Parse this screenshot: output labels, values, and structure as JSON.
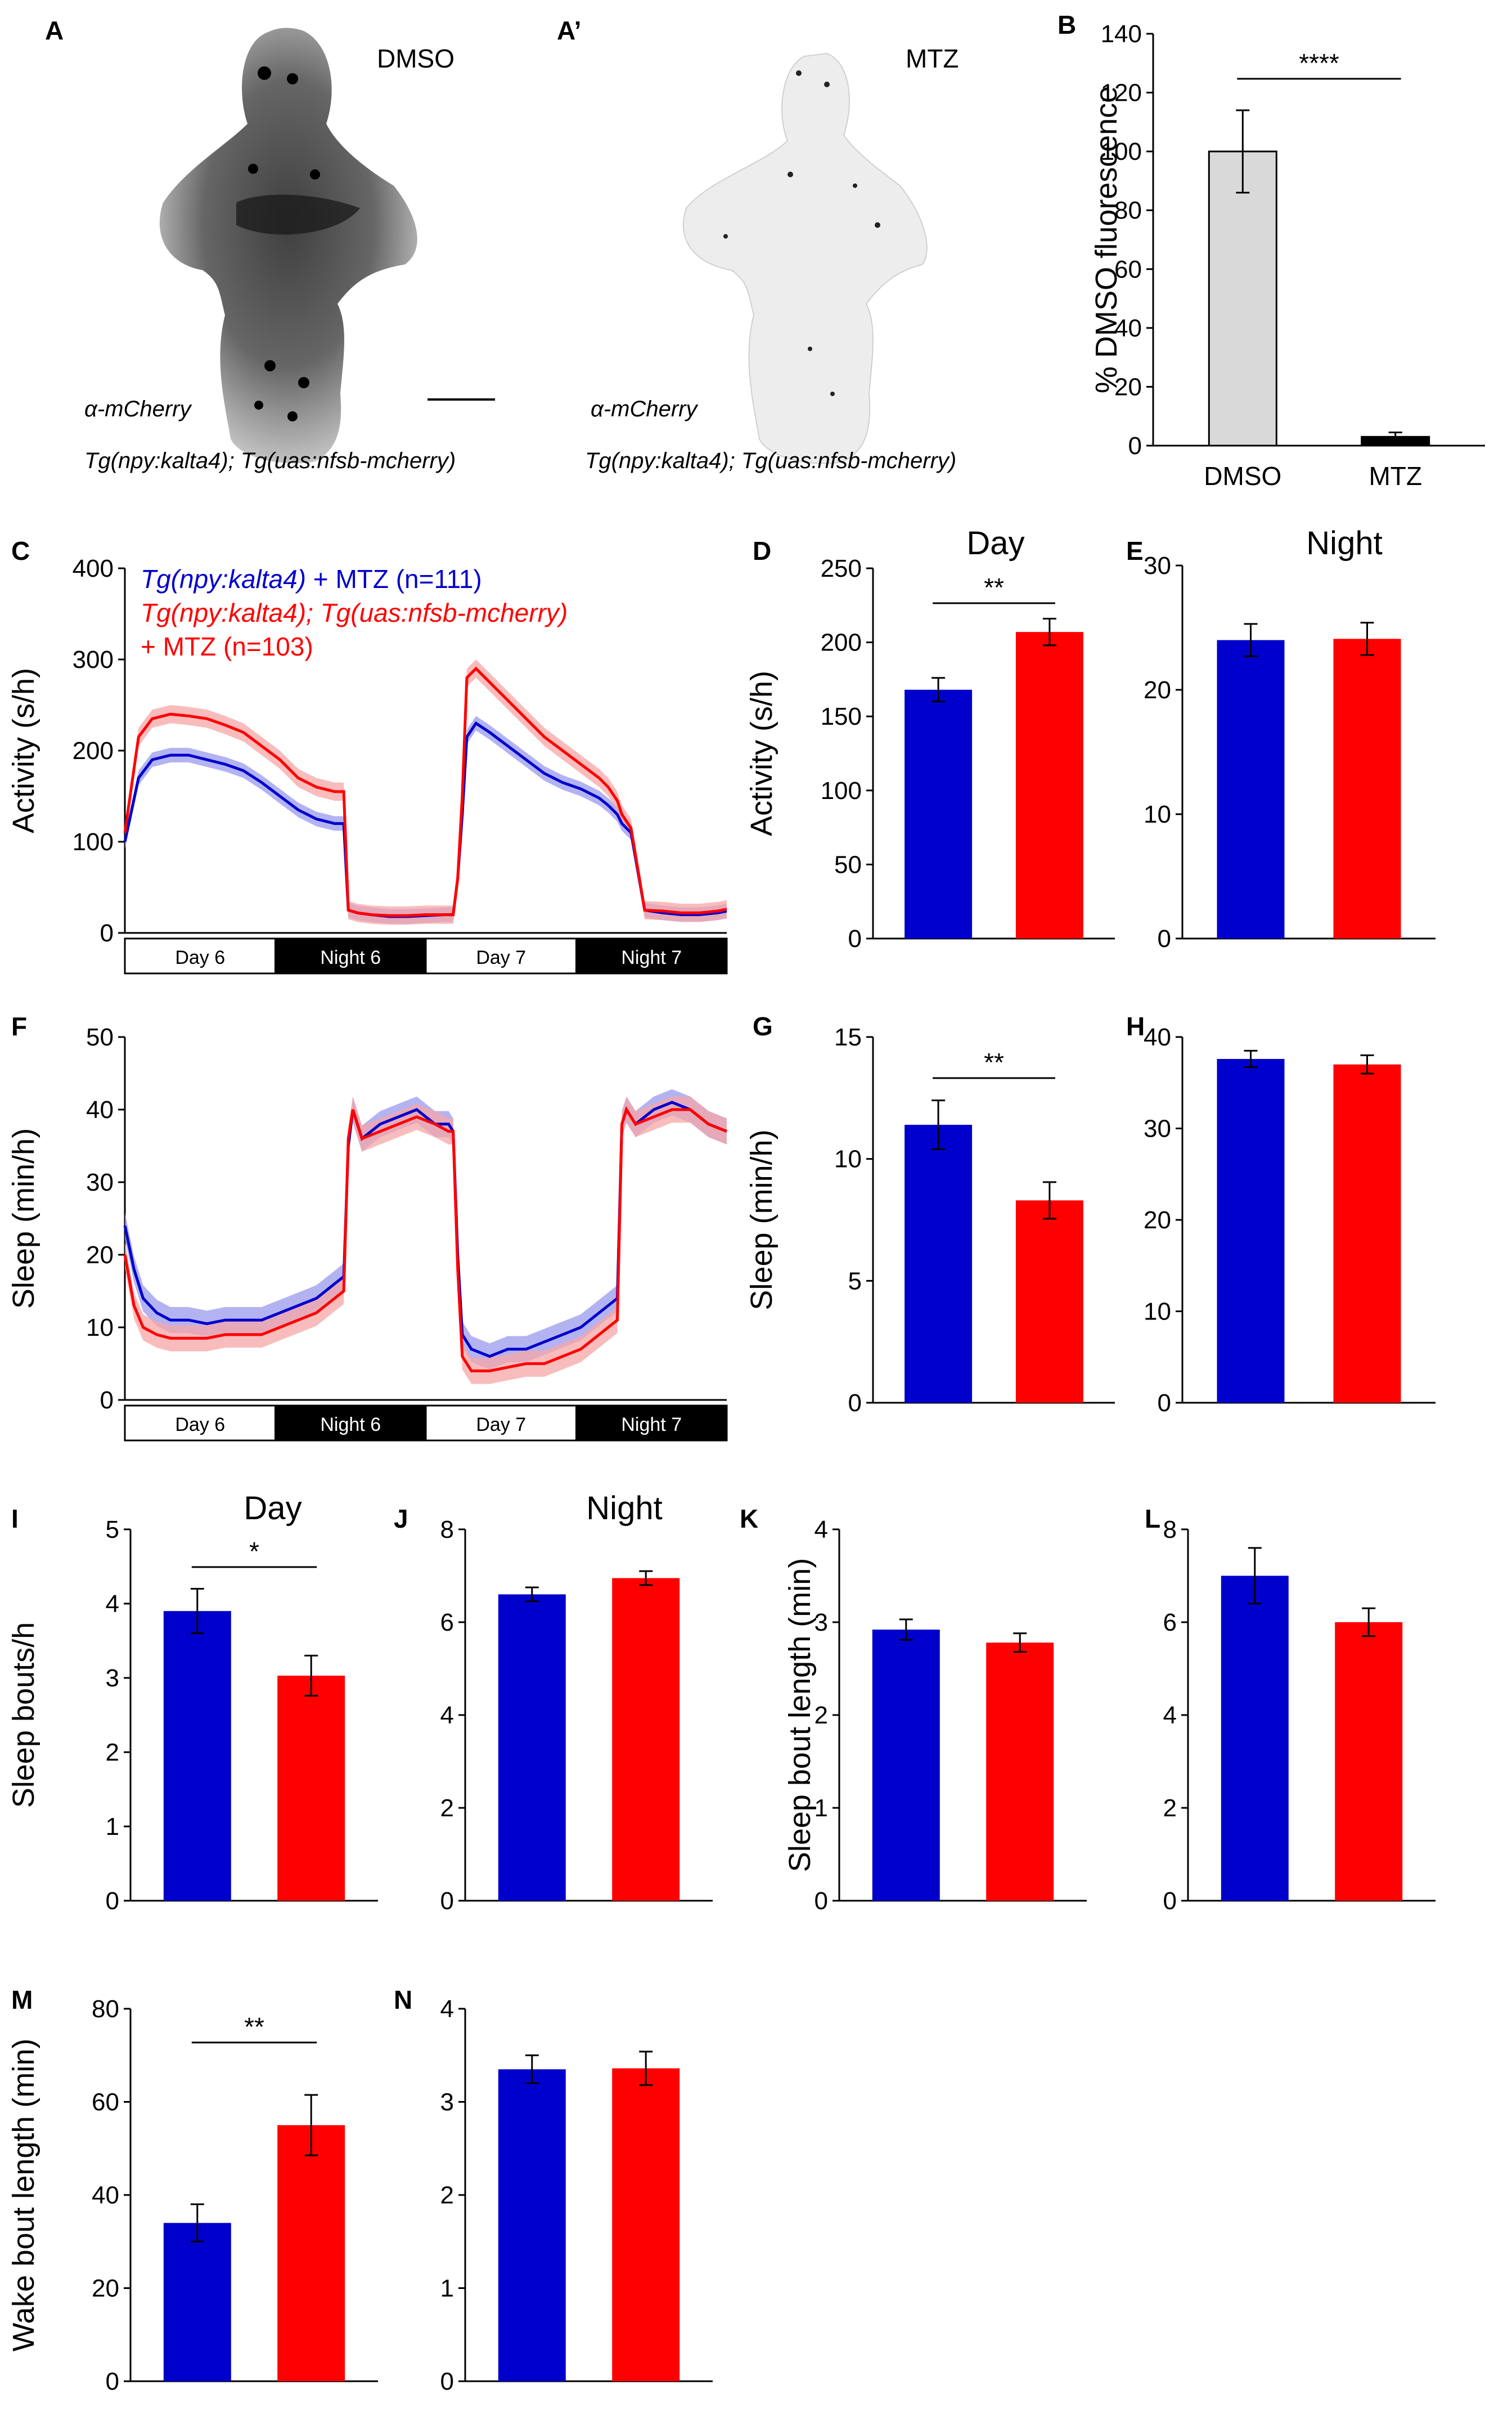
{
  "colors": {
    "blue": "#0000cc",
    "red": "#ff0000",
    "blue_band": "#9a9aee",
    "red_band": "#f7a6a6",
    "dmso_bar": "#d9d9d9",
    "mtz_bar": "#000000"
  },
  "panel_images": {
    "A": {
      "label": "A",
      "title": "DMSO",
      "antibody": "α-mCherry",
      "genotype": "Tg(npy:kalta4); Tg(uas:nfsb-mcherry)"
    },
    "A2": {
      "label": "A’",
      "title": "MTZ",
      "antibody": "α-mCherry",
      "genotype": "Tg(npy:kalta4); Tg(uas:nfsb-mcherry)"
    }
  },
  "legend": {
    "blue_text": "Tg(npy:kalta4)",
    "blue_rest": " + MTZ (n=111)",
    "red_line1": "Tg(npy:kalta4); Tg(uas:nfsb-mcherry)",
    "red_line2": "+ MTZ (n=103)"
  },
  "time_bands": [
    "Day 6",
    "Night 6",
    "Day 7",
    "Night 7"
  ],
  "chart_data": [
    {
      "id": "B",
      "label": "B",
      "type": "bar",
      "categories": [
        "DMSO",
        "MTZ"
      ],
      "values": [
        100,
        3
      ],
      "errors": [
        14,
        1.5
      ],
      "ylim": [
        0,
        140
      ],
      "yticks": [
        0,
        20,
        40,
        60,
        80,
        100,
        120,
        140
      ],
      "ylabel": "% DMSO fluorescence",
      "significance": "****",
      "title": ""
    },
    {
      "id": "C",
      "label": "C",
      "type": "line",
      "ylabel": "Activity (s/h)",
      "ylim": [
        0,
        400
      ],
      "yticks": [
        0,
        100,
        200,
        300,
        400
      ],
      "series": [
        {
          "name": "Tg(npy:kalta4) + MTZ (n=111)",
          "color": "#0000cc",
          "x": [
            0,
            3,
            6,
            10,
            14,
            18,
            22,
            26,
            30,
            34,
            38,
            42,
            46,
            48,
            49,
            51,
            54,
            58,
            62,
            66,
            70,
            72,
            73,
            74,
            75,
            77,
            80,
            84,
            88,
            92,
            96,
            100,
            104,
            106,
            108,
            109,
            111,
            114,
            118,
            122,
            126,
            130,
            132
          ],
          "y": [
            100,
            170,
            190,
            195,
            195,
            190,
            185,
            178,
            165,
            150,
            135,
            125,
            120,
            120,
            25,
            22,
            20,
            18,
            18,
            19,
            20,
            20,
            60,
            130,
            215,
            230,
            220,
            205,
            190,
            175,
            165,
            158,
            148,
            140,
            130,
            120,
            110,
            25,
            22,
            20,
            20,
            22,
            24
          ],
          "band": 8
        },
        {
          "name": "Tg(npy:kalta4); Tg(uas:nfsb-mcherry) + MTZ (n=103)",
          "color": "#ff0000",
          "x": [
            0,
            3,
            6,
            10,
            14,
            18,
            22,
            26,
            30,
            34,
            38,
            42,
            46,
            48,
            49,
            51,
            54,
            58,
            62,
            66,
            70,
            72,
            73,
            74,
            75,
            77,
            80,
            84,
            88,
            92,
            96,
            100,
            104,
            106,
            108,
            109,
            111,
            114,
            118,
            122,
            126,
            130,
            132
          ],
          "y": [
            110,
            215,
            235,
            240,
            238,
            235,
            228,
            220,
            205,
            190,
            170,
            160,
            155,
            155,
            25,
            22,
            20,
            19,
            19,
            20,
            20,
            20,
            60,
            150,
            280,
            290,
            275,
            255,
            235,
            215,
            200,
            185,
            170,
            160,
            145,
            130,
            115,
            25,
            24,
            22,
            22,
            24,
            26
          ],
          "band": 10
        }
      ]
    },
    {
      "id": "D",
      "label": "D",
      "type": "bar",
      "title": "Day",
      "categories": [
        "Tg(npy:kalta4) + MTZ",
        "Tg(npy:kalta4); Tg(uas:nfsb-mcherry) + MTZ"
      ],
      "values": [
        168,
        207
      ],
      "errors": [
        8,
        9
      ],
      "ylim": [
        0,
        250
      ],
      "yticks": [
        0,
        50,
        100,
        150,
        200,
        250
      ],
      "ylabel": "Activity (s/h)",
      "significance": "**"
    },
    {
      "id": "E",
      "label": "E",
      "type": "bar",
      "title": "Night",
      "categories": [
        "Tg(npy:kalta4) + MTZ",
        "Tg(npy:kalta4); Tg(uas:nfsb-mcherry) + MTZ"
      ],
      "values": [
        24,
        24.1
      ],
      "errors": [
        1.3,
        1.3
      ],
      "ylim": [
        0,
        30
      ],
      "yticks": [
        0,
        10,
        20,
        30
      ],
      "ylabel": ""
    },
    {
      "id": "F",
      "label": "F",
      "type": "line",
      "ylabel": "Sleep (min/h)",
      "ylim": [
        0,
        50
      ],
      "yticks": [
        0,
        10,
        20,
        30,
        40,
        50
      ],
      "series": [
        {
          "name": "Tg(npy:kalta4) + MTZ (n=111)",
          "color": "#0000cc",
          "x": [
            0,
            2,
            4,
            7,
            10,
            14,
            18,
            22,
            26,
            30,
            34,
            38,
            42,
            46,
            48,
            49,
            50,
            52,
            56,
            60,
            64,
            68,
            71,
            72,
            73,
            74,
            76,
            80,
            84,
            88,
            92,
            96,
            100,
            104,
            108,
            109,
            110,
            112,
            116,
            120,
            124,
            128,
            132
          ],
          "y": [
            24,
            18,
            14,
            12,
            11,
            11,
            10.5,
            11,
            11,
            11,
            12,
            13,
            14,
            16,
            17,
            35,
            40,
            36,
            38,
            39,
            40,
            38,
            38,
            37,
            20,
            9,
            7,
            6,
            7,
            7,
            8,
            9,
            10,
            12,
            14,
            38,
            40,
            38,
            40,
            41,
            40,
            38,
            37
          ],
          "band": 1.8
        },
        {
          "name": "Tg(npy:kalta4); Tg(uas:nfsb-mcherry) + MTZ (n=103)",
          "color": "#ff0000",
          "x": [
            0,
            2,
            4,
            7,
            10,
            14,
            18,
            22,
            26,
            30,
            34,
            38,
            42,
            46,
            48,
            49,
            50,
            52,
            56,
            60,
            64,
            68,
            71,
            72,
            73,
            74,
            76,
            80,
            84,
            88,
            92,
            96,
            100,
            104,
            108,
            109,
            110,
            112,
            116,
            120,
            124,
            128,
            132
          ],
          "y": [
            20,
            13,
            10,
            9,
            8.5,
            8.5,
            8.5,
            9,
            9,
            9,
            10,
            11,
            12,
            14,
            15,
            36,
            40,
            36,
            37,
            38,
            39,
            38,
            37,
            37,
            18,
            6,
            4,
            4,
            4.5,
            5,
            5,
            6,
            7,
            9,
            11,
            38,
            40,
            38,
            39,
            40,
            40,
            38,
            37
          ],
          "band": 1.8
        }
      ]
    },
    {
      "id": "G",
      "label": "G",
      "type": "bar",
      "categories": [
        "Tg(npy:kalta4) + MTZ",
        "Tg(npy:kalta4); Tg(uas:nfsb-mcherry) + MTZ"
      ],
      "values": [
        11.4,
        8.3
      ],
      "errors": [
        1,
        0.75
      ],
      "ylim": [
        0,
        15
      ],
      "yticks": [
        0,
        5,
        10,
        15
      ],
      "ylabel": "Sleep (min/h)",
      "significance": "**"
    },
    {
      "id": "H",
      "label": "H",
      "type": "bar",
      "categories": [
        "Tg(npy:kalta4) + MTZ",
        "Tg(npy:kalta4); Tg(uas:nfsb-mcherry) + MTZ"
      ],
      "values": [
        37.6,
        37
      ],
      "errors": [
        0.9,
        1
      ],
      "ylim": [
        0,
        40
      ],
      "yticks": [
        0,
        10,
        20,
        30,
        40
      ],
      "ylabel": ""
    },
    {
      "id": "I",
      "label": "I",
      "type": "bar",
      "title": "Day",
      "categories": [
        "Tg(npy:kalta4) + MTZ",
        "Tg(npy:kalta4); Tg(uas:nfsb-mcherry) + MTZ"
      ],
      "values": [
        3.9,
        3.03
      ],
      "errors": [
        0.3,
        0.27
      ],
      "ylim": [
        0,
        5
      ],
      "yticks": [
        0,
        1,
        2,
        3,
        4,
        5
      ],
      "ylabel": "Sleep bouts/h",
      "significance": "*"
    },
    {
      "id": "J",
      "label": "J",
      "type": "bar",
      "title": "Night",
      "categories": [
        "Tg(npy:kalta4) + MTZ",
        "Tg(npy:kalta4); Tg(uas:nfsb-mcherry) + MTZ"
      ],
      "values": [
        6.6,
        6.95
      ],
      "errors": [
        0.15,
        0.15
      ],
      "ylim": [
        0,
        8
      ],
      "yticks": [
        0,
        2,
        4,
        6,
        8
      ],
      "ylabel": ""
    },
    {
      "id": "K",
      "label": "K",
      "type": "bar",
      "categories": [
        "Tg(npy:kalta4) + MTZ",
        "Tg(npy:kalta4); Tg(uas:nfsb-mcherry) + MTZ"
      ],
      "values": [
        2.92,
        2.78
      ],
      "errors": [
        0.11,
        0.1
      ],
      "ylim": [
        0,
        4
      ],
      "yticks": [
        0,
        1,
        2,
        3,
        4
      ],
      "ylabel": "Sleep bout length (min)"
    },
    {
      "id": "L",
      "label": "L",
      "type": "bar",
      "categories": [
        "Tg(npy:kalta4) + MTZ",
        "Tg(npy:kalta4); Tg(uas:nfsb-mcherry) + MTZ"
      ],
      "values": [
        7,
        6
      ],
      "errors": [
        0.6,
        0.3
      ],
      "ylim": [
        0,
        8
      ],
      "yticks": [
        0,
        2,
        4,
        6,
        8
      ],
      "ylabel": ""
    },
    {
      "id": "M",
      "label": "M",
      "type": "bar",
      "categories": [
        "Tg(npy:kalta4) + MTZ",
        "Tg(npy:kalta4); Tg(uas:nfsb-mcherry) + MTZ"
      ],
      "values": [
        34,
        55
      ],
      "errors": [
        4,
        6.5
      ],
      "ylim": [
        0,
        80
      ],
      "yticks": [
        0,
        20,
        40,
        60,
        80
      ],
      "ylabel": "Wake bout length (min)",
      "significance": "**"
    },
    {
      "id": "N",
      "label": "N",
      "type": "bar",
      "categories": [
        "Tg(npy:kalta4) + MTZ",
        "Tg(npy:kalta4); Tg(uas:nfsb-mcherry) + MTZ"
      ],
      "values": [
        3.35,
        3.36
      ],
      "errors": [
        0.15,
        0.18
      ],
      "ylim": [
        0,
        4
      ],
      "yticks": [
        0,
        1,
        2,
        3,
        4
      ],
      "ylabel": ""
    }
  ]
}
